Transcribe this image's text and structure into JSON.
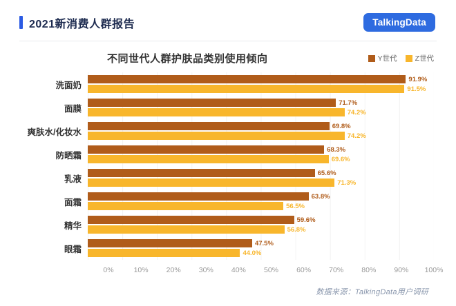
{
  "header": {
    "title": "2021新消费人群报告",
    "logo": "TalkingData"
  },
  "chart_data": {
    "type": "bar",
    "orientation": "horizontal",
    "title": "不同世代人群护肤品类别使用倾向",
    "categories": [
      "洗面奶",
      "面膜",
      "爽肤水/化妆水",
      "防晒霜",
      "乳液",
      "面霜",
      "精华",
      "眼霜"
    ],
    "series": [
      {
        "name": "Y世代",
        "color": "#B05C1A",
        "values": [
          91.9,
          71.7,
          69.8,
          68.3,
          65.6,
          63.8,
          59.6,
          47.5
        ]
      },
      {
        "name": "Z世代",
        "color": "#F8B62C",
        "values": [
          91.5,
          74.2,
          74.2,
          69.6,
          71.3,
          56.5,
          56.8,
          44.0
        ]
      }
    ],
    "x_ticks": [
      "0%",
      "10%",
      "20%",
      "30%",
      "40%",
      "50%",
      "60%",
      "70%",
      "80%",
      "90%",
      "100%"
    ],
    "xlim": [
      0,
      100
    ],
    "value_suffix": "%",
    "grid": "vertical-light",
    "legend_position": "top-right"
  },
  "footer": {
    "source": "数据来源：TalkingData用户调研"
  }
}
